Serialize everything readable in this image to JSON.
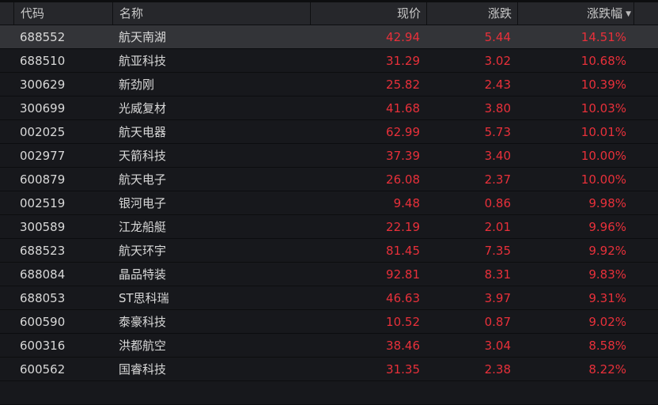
{
  "columns": {
    "code": "代码",
    "name": "名称",
    "price": "现价",
    "change": "涨跌",
    "change_pct": "涨跌幅"
  },
  "sort": {
    "column": "change_pct",
    "direction": "desc",
    "icon": "sort-down-triangle"
  },
  "accent_up": "#e8303a",
  "rows": [
    {
      "code": "688552",
      "name": "航天南湖",
      "price": "42.94",
      "change": "5.44",
      "change_pct": "14.51%"
    },
    {
      "code": "688510",
      "name": "航亚科技",
      "price": "31.29",
      "change": "3.02",
      "change_pct": "10.68%"
    },
    {
      "code": "300629",
      "name": "新劲刚",
      "price": "25.82",
      "change": "2.43",
      "change_pct": "10.39%"
    },
    {
      "code": "300699",
      "name": "光威复材",
      "price": "41.68",
      "change": "3.80",
      "change_pct": "10.03%"
    },
    {
      "code": "002025",
      "name": "航天电器",
      "price": "62.99",
      "change": "5.73",
      "change_pct": "10.01%"
    },
    {
      "code": "002977",
      "name": "天箭科技",
      "price": "37.39",
      "change": "3.40",
      "change_pct": "10.00%"
    },
    {
      "code": "600879",
      "name": "航天电子",
      "price": "26.08",
      "change": "2.37",
      "change_pct": "10.00%"
    },
    {
      "code": "002519",
      "name": "银河电子",
      "price": "9.48",
      "change": "0.86",
      "change_pct": "9.98%"
    },
    {
      "code": "300589",
      "name": "江龙船艇",
      "price": "22.19",
      "change": "2.01",
      "change_pct": "9.96%"
    },
    {
      "code": "688523",
      "name": "航天环宇",
      "price": "81.45",
      "change": "7.35",
      "change_pct": "9.92%"
    },
    {
      "code": "688084",
      "name": "晶品特装",
      "price": "92.81",
      "change": "8.31",
      "change_pct": "9.83%"
    },
    {
      "code": "688053",
      "name": "ST思科瑞",
      "price": "46.63",
      "change": "3.97",
      "change_pct": "9.31%"
    },
    {
      "code": "600590",
      "name": "泰豪科技",
      "price": "10.52",
      "change": "0.87",
      "change_pct": "9.02%"
    },
    {
      "code": "600316",
      "name": "洪都航空",
      "price": "38.46",
      "change": "3.04",
      "change_pct": "8.58%"
    },
    {
      "code": "600562",
      "name": "国睿科技",
      "price": "31.35",
      "change": "2.38",
      "change_pct": "8.22%"
    }
  ]
}
